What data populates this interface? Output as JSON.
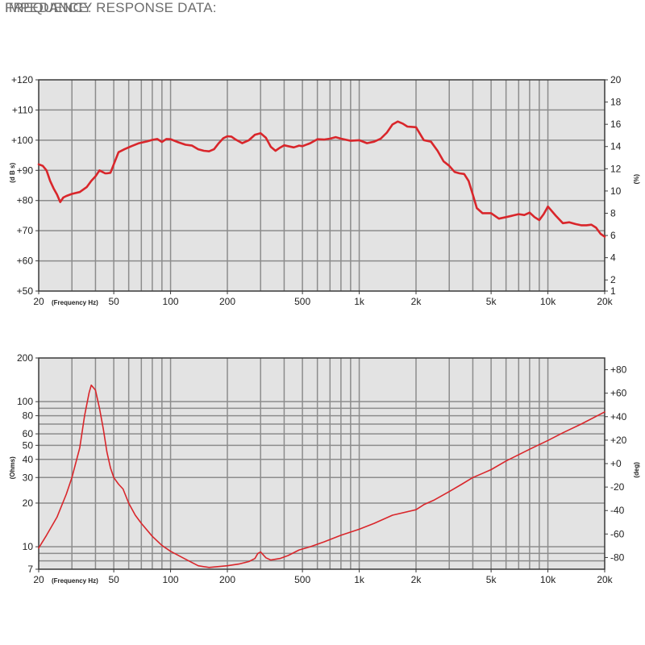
{
  "colors": {
    "plot_bg": "#e3e3e3",
    "grid": "#8c8c8c",
    "frame": "#3a3a3a",
    "curve": "#d9262b"
  },
  "chart_data": [
    {
      "type": "line",
      "title": "FREQUENCY RESPONSE DATA:",
      "xlabel": "(Frequency Hz)",
      "ylabel": "(d B s)",
      "y2label": "(%)",
      "xscale": "log",
      "xlim": [
        20,
        20000
      ],
      "ylim": [
        50,
        120
      ],
      "y2lim": [
        1,
        20
      ],
      "x_ticks": [
        "20",
        "50",
        "100",
        "200",
        "500",
        "1k",
        "2k",
        "5k",
        "10k",
        "20k"
      ],
      "y_ticks": [
        "+50",
        "+60",
        "+70",
        "+80",
        "+90",
        "+100",
        "+110",
        "+120"
      ],
      "y2_ticks": [
        "1",
        "2",
        "4",
        "6",
        "8",
        "10",
        "12",
        "14",
        "16",
        "18",
        "20"
      ],
      "series": [
        {
          "x": [
            20,
            21,
            22,
            23,
            24,
            25,
            26,
            27,
            28,
            30,
            33,
            36,
            38,
            40,
            42,
            45,
            46,
            48,
            50,
            53,
            57,
            62,
            68,
            75,
            80,
            85,
            90,
            95,
            100,
            110,
            120,
            130,
            140,
            150,
            160,
            170,
            180,
            190,
            200,
            210,
            220,
            240,
            260,
            280,
            300,
            320,
            340,
            360,
            380,
            400,
            420,
            450,
            480,
            500,
            550,
            600,
            650,
            700,
            750,
            800,
            900,
            1000,
            1100,
            1200,
            1300,
            1400,
            1500,
            1600,
            1700,
            1800,
            2000,
            2200,
            2400,
            2600,
            2800,
            3000,
            3200,
            3400,
            3600,
            3800,
            4000,
            4200,
            4500,
            5000,
            5500,
            6000,
            6500,
            7000,
            7500,
            8000,
            8500,
            9000,
            9500,
            10000,
            11000,
            12000,
            13000,
            14000,
            15000,
            16000,
            17000,
            18000,
            19000,
            20000
          ],
          "y": [
            92,
            91.5,
            90,
            86.5,
            84,
            82,
            79.5,
            81,
            81.5,
            82.2,
            82.8,
            84.5,
            86.5,
            88,
            90,
            89,
            89,
            89.2,
            92,
            96,
            97,
            98,
            99,
            99.6,
            100.1,
            100.4,
            99.4,
            100.4,
            100.3,
            99.3,
            98.5,
            98.2,
            97,
            96.5,
            96.3,
            97,
            99,
            100.6,
            101.3,
            101.2,
            100.3,
            99,
            100,
            101.8,
            102.3,
            100.8,
            97.8,
            96.5,
            97.5,
            98.3,
            98,
            97.6,
            98.2,
            98,
            99,
            100.3,
            100.2,
            100.5,
            101,
            100.5,
            99.8,
            100,
            99,
            99.5,
            100.5,
            102.5,
            105.2,
            106.2,
            105.5,
            104.5,
            104.3,
            100,
            99.5,
            96.5,
            93,
            91.5,
            89.5,
            89,
            88.8,
            86.5,
            82,
            77.5,
            75.8,
            75.8,
            74,
            74.5,
            75,
            75.5,
            75.2,
            76,
            74.5,
            73.5,
            75.5,
            78,
            75,
            72.5,
            72.8,
            72.2,
            71.8,
            71.8,
            72,
            71,
            69,
            68
          ]
        }
      ]
    },
    {
      "type": "line",
      "title": "IMPEDANCE:",
      "xlabel": "(Frequency Hz)",
      "ylabel": "(Ohms)",
      "y2label": "(deg)",
      "xscale": "log",
      "yscale": "log",
      "xlim": [
        20,
        20000
      ],
      "ylim": [
        7,
        200
      ],
      "y2lim": [
        -90,
        90
      ],
      "x_ticks": [
        "20",
        "50",
        "100",
        "200",
        "500",
        "1k",
        "2k",
        "5k",
        "10k",
        "20k"
      ],
      "y_ticks": [
        "7",
        "10",
        "20",
        "30",
        "40",
        "50",
        "60",
        "80",
        "100",
        "200"
      ],
      "y2_ticks": [
        "+80",
        "+60",
        "+40",
        "+20",
        "+0",
        "-20",
        "-40",
        "-60",
        "-80"
      ],
      "series": [
        {
          "x": [
            20,
            22,
            25,
            28,
            30,
            33,
            35,
            37,
            38,
            40,
            42,
            44,
            46,
            48,
            50,
            53,
            56,
            60,
            65,
            70,
            80,
            90,
            100,
            120,
            140,
            160,
            180,
            200,
            230,
            260,
            280,
            290,
            300,
            320,
            340,
            380,
            420,
            480,
            550,
            650,
            800,
            1000,
            1200,
            1500,
            2000,
            2200,
            2500,
            3000,
            3500,
            4000,
            4500,
            5000,
            6000,
            8000,
            10000,
            12000,
            15000,
            20000
          ],
          "y": [
            9.8,
            12,
            16,
            23,
            30,
            48,
            80,
            115,
            130,
            120,
            90,
            65,
            45,
            35,
            30,
            27,
            25,
            20,
            16.5,
            14.5,
            11.8,
            10.2,
            9.3,
            8.2,
            7.4,
            7.2,
            7.3,
            7.4,
            7.6,
            7.9,
            8.3,
            9,
            9.2,
            8.4,
            8.1,
            8.3,
            8.7,
            9.5,
            10,
            10.8,
            12,
            13.2,
            14.5,
            16.5,
            18,
            19.5,
            21,
            24,
            27,
            30,
            32,
            34,
            39,
            47,
            54,
            61,
            70,
            85
          ]
        }
      ]
    }
  ]
}
